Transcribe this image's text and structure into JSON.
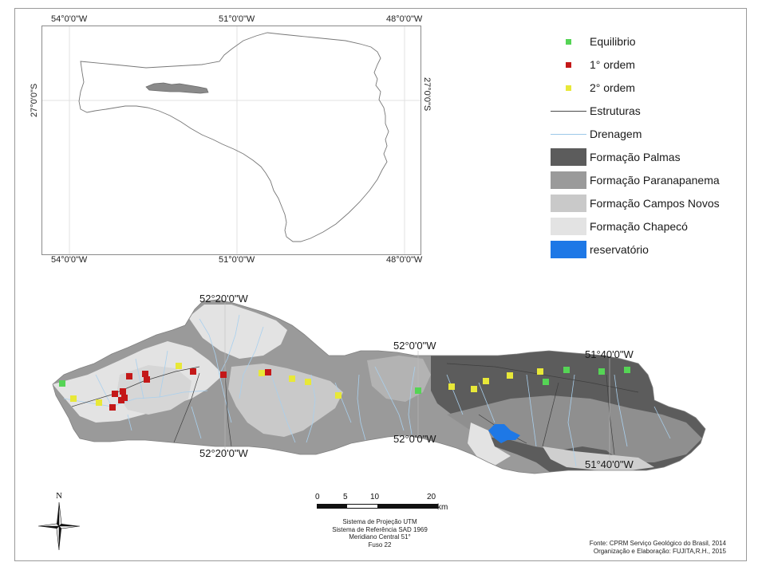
{
  "legend": {
    "items": [
      {
        "label": "Equilibrio",
        "kind": "point",
        "color": "#55d455"
      },
      {
        "label": "1° ordem",
        "kind": "point",
        "color": "#c41818"
      },
      {
        "label": "2° ordem",
        "kind": "point",
        "color": "#e8e838"
      },
      {
        "label": "Estruturas",
        "kind": "line",
        "color": "#4a4a4a"
      },
      {
        "label": "Drenagem",
        "kind": "line",
        "color": "#9cc8e8"
      },
      {
        "label": "Formação Palmas",
        "kind": "fill",
        "color": "#5c5c5c"
      },
      {
        "label": "Formação Paranapanema",
        "kind": "fill",
        "color": "#9a9a9a"
      },
      {
        "label": "Formação Campos Novos",
        "kind": "fill",
        "color": "#c9c9c9"
      },
      {
        "label": "Formação Chapecó",
        "kind": "fill",
        "color": "#e3e3e3"
      },
      {
        "label": "reservatório",
        "kind": "fill",
        "color": "#1e78e6"
      }
    ]
  },
  "locator": {
    "top_ticks": [
      "54°0'0\"W",
      "51°0'0\"W",
      "48°0'0\"W"
    ],
    "bottom_ticks": [
      "54°0'0\"W",
      "51°0'0\"W",
      "48°0'0\"W"
    ],
    "left_tick": "27°0'0\"S",
    "right_tick": "27°0'0\"S"
  },
  "main_map": {
    "labels": {
      "top_left": "52°20'0\"W",
      "top_mid": "52°0'0\"W",
      "top_right": "51°40'0\"W",
      "bottom_left": "52°20'0\"W",
      "bottom_mid": "52°0'0\"W",
      "bottom_right": "51°40'0\"W"
    }
  },
  "north_arrow": {
    "label": "N"
  },
  "scale_bar": {
    "ticks": [
      "0",
      "5",
      "10",
      "20"
    ],
    "unit": "km"
  },
  "projection_info": {
    "line1": "Sistema de Projeção UTM",
    "line2": "Sistema de Referência SAD 1969",
    "line3": "Meridiano Central 51°",
    "line4": "Fuso 22"
  },
  "credits": {
    "line1": "Fonte: CPRM Serviço Geológico do Brasil, 2014",
    "line2": "Organização e Elaboração: FUJITA,R.H., 2015"
  }
}
